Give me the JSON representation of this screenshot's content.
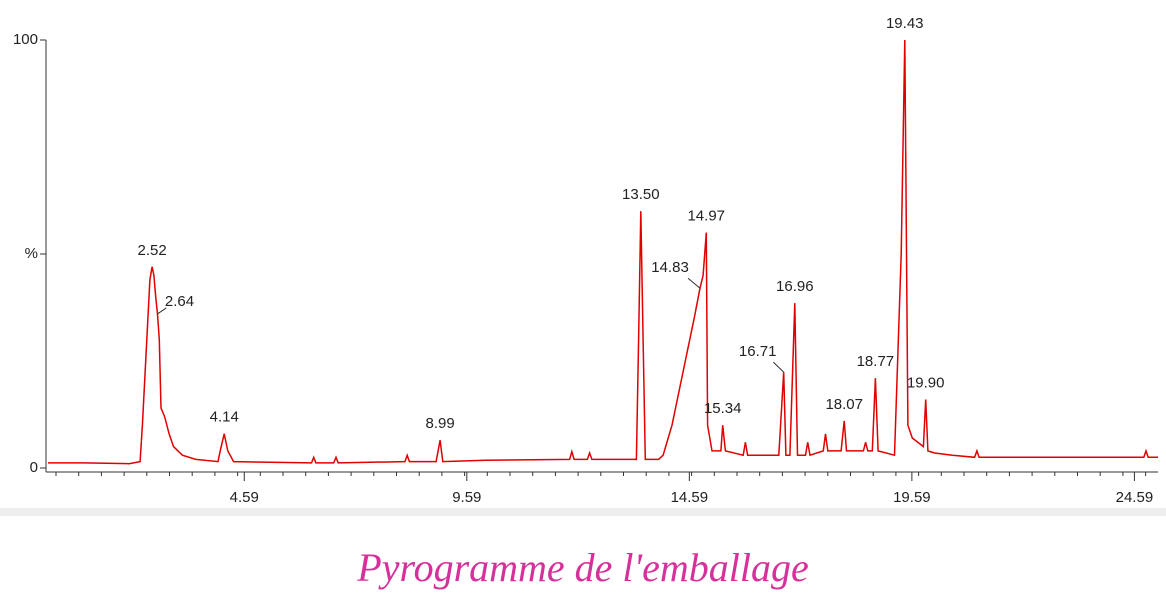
{
  "chart_data": {
    "type": "line",
    "title": "Pyrogramme de l'emballage",
    "color": "#e00000",
    "xlim": [
      0.18,
      25.12
    ],
    "ylim": [
      0,
      100
    ],
    "xticks": [
      4.59,
      9.59,
      14.59,
      19.59,
      24.59
    ],
    "yticks": [
      0,
      {
        "value": 50,
        "label": "%"
      },
      100
    ],
    "x": [
      0.18,
      1.0,
      2.0,
      2.25,
      2.3,
      2.4,
      2.47,
      2.52,
      2.56,
      2.6,
      2.64,
      2.68,
      2.72,
      2.8,
      2.9,
      3.0,
      3.2,
      3.5,
      4.0,
      4.05,
      4.14,
      4.22,
      4.35,
      6.1,
      6.15,
      6.2,
      6.6,
      6.65,
      6.7,
      8.2,
      8.25,
      8.3,
      8.9,
      8.99,
      9.05,
      10.0,
      11.9,
      11.95,
      12.0,
      12.3,
      12.35,
      12.4,
      13.4,
      13.45,
      13.5,
      13.55,
      13.6,
      13.9,
      14.0,
      14.2,
      14.5,
      14.7,
      14.83,
      14.9,
      14.97,
      15.0,
      15.1,
      15.3,
      15.34,
      15.4,
      15.8,
      15.85,
      15.9,
      16.6,
      16.71,
      16.76,
      16.85,
      16.96,
      17.02,
      17.2,
      17.25,
      17.3,
      17.6,
      17.65,
      17.7,
      18.0,
      18.07,
      18.12,
      18.5,
      18.55,
      18.6,
      18.7,
      18.77,
      18.83,
      19.2,
      19.35,
      19.43,
      19.5,
      19.6,
      19.85,
      19.9,
      19.95,
      20.1,
      20.5,
      21.0,
      21.05,
      21.1,
      23.0,
      24.8,
      24.85,
      24.9,
      25.12
    ],
    "y": [
      1.2,
      1.2,
      1.0,
      1.5,
      10,
      30,
      44,
      47,
      45,
      40,
      36,
      30,
      14,
      12,
      8,
      5,
      3,
      2,
      1.5,
      4,
      8,
      4,
      1.5,
      1.2,
      2.5,
      1.2,
      1.2,
      2.5,
      1.2,
      1.5,
      3,
      1.5,
      1.5,
      6.5,
      1.5,
      1.8,
      2,
      3.8,
      2,
      2,
      3.5,
      2,
      2,
      30,
      60,
      30,
      2,
      2,
      3,
      10,
      25,
      35,
      42,
      45,
      55,
      10,
      4,
      4,
      10,
      4,
      3,
      6,
      3,
      3,
      22.4,
      3,
      3,
      38.5,
      3,
      3,
      6,
      3,
      4,
      8,
      4,
      4,
      11,
      4,
      4,
      6,
      4,
      4,
      21,
      4,
      3,
      50,
      100,
      10,
      7,
      5,
      16,
      4,
      3.5,
      3,
      2.5,
      4,
      2.5,
      2.5,
      2.5,
      4,
      2.5,
      2.5
    ],
    "annotations": [
      {
        "text": "2.52",
        "x": 2.52,
        "y": 47
      },
      {
        "text": "2.64",
        "x": 2.64,
        "y": 36
      },
      {
        "text": "4.14",
        "x": 4.14,
        "y": 8
      },
      {
        "text": "8.99",
        "x": 8.99,
        "y": 6.5
      },
      {
        "text": "13.50",
        "x": 13.5,
        "y": 60
      },
      {
        "text": "14.83",
        "x": 14.83,
        "y": 42
      },
      {
        "text": "14.97",
        "x": 14.97,
        "y": 55
      },
      {
        "text": "15.34",
        "x": 15.34,
        "y": 10
      },
      {
        "text": "16.71",
        "x": 16.71,
        "y": 22.4
      },
      {
        "text": "16.96",
        "x": 16.96,
        "y": 38.5
      },
      {
        "text": "18.07",
        "x": 18.07,
        "y": 11
      },
      {
        "text": "18.77",
        "x": 18.77,
        "y": 21
      },
      {
        "text": "19.43",
        "x": 19.43,
        "y": 100
      },
      {
        "text": "19.90",
        "x": 19.9,
        "y": 16
      }
    ]
  }
}
